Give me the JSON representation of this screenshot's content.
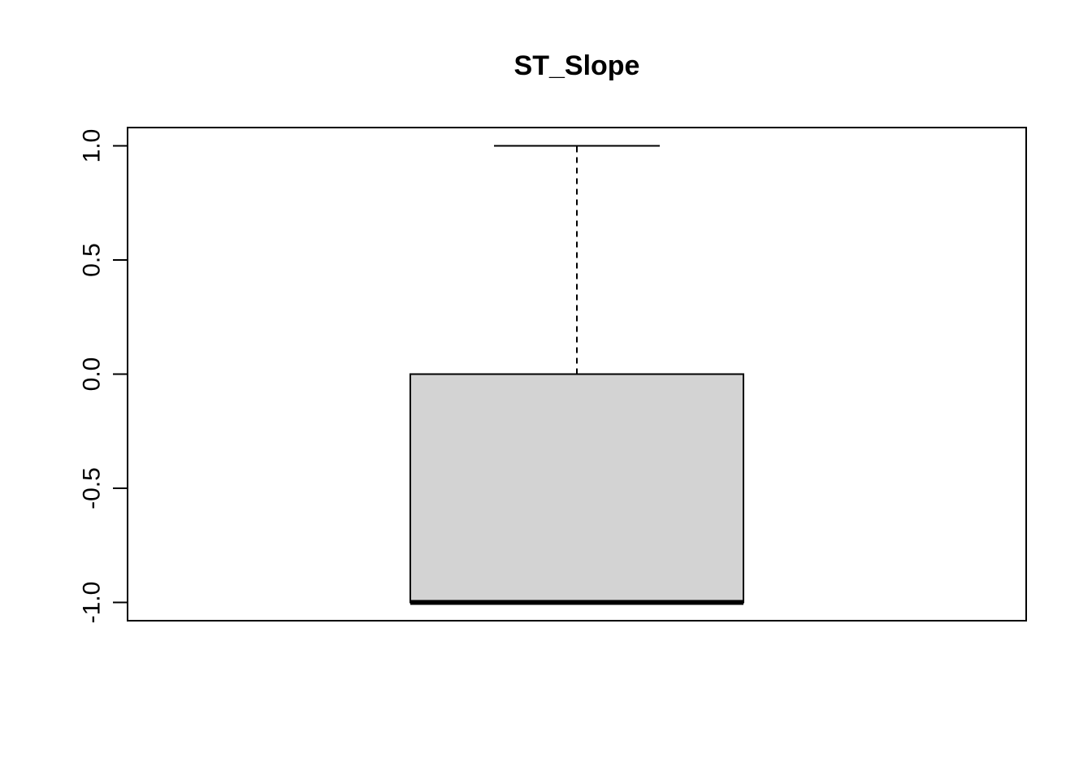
{
  "chart_data": {
    "type": "boxplot",
    "title": "ST_Slope",
    "xlabel": "",
    "ylabel": "",
    "ylim": [
      -1.08,
      1.08
    ],
    "yticks": [
      -1.0,
      -0.5,
      0.0,
      0.5,
      1.0
    ],
    "ytick_labels": [
      "-1.0",
      "-0.5",
      "0.0",
      "0.5",
      "1.0"
    ],
    "grid": false,
    "series": [
      {
        "min": -1.0,
        "q1": -1.0,
        "median": -1.0,
        "q3": 0.0,
        "max": 1.0
      }
    ],
    "colors": {
      "box_fill": "#d3d3d3",
      "stroke": "#000000"
    }
  }
}
